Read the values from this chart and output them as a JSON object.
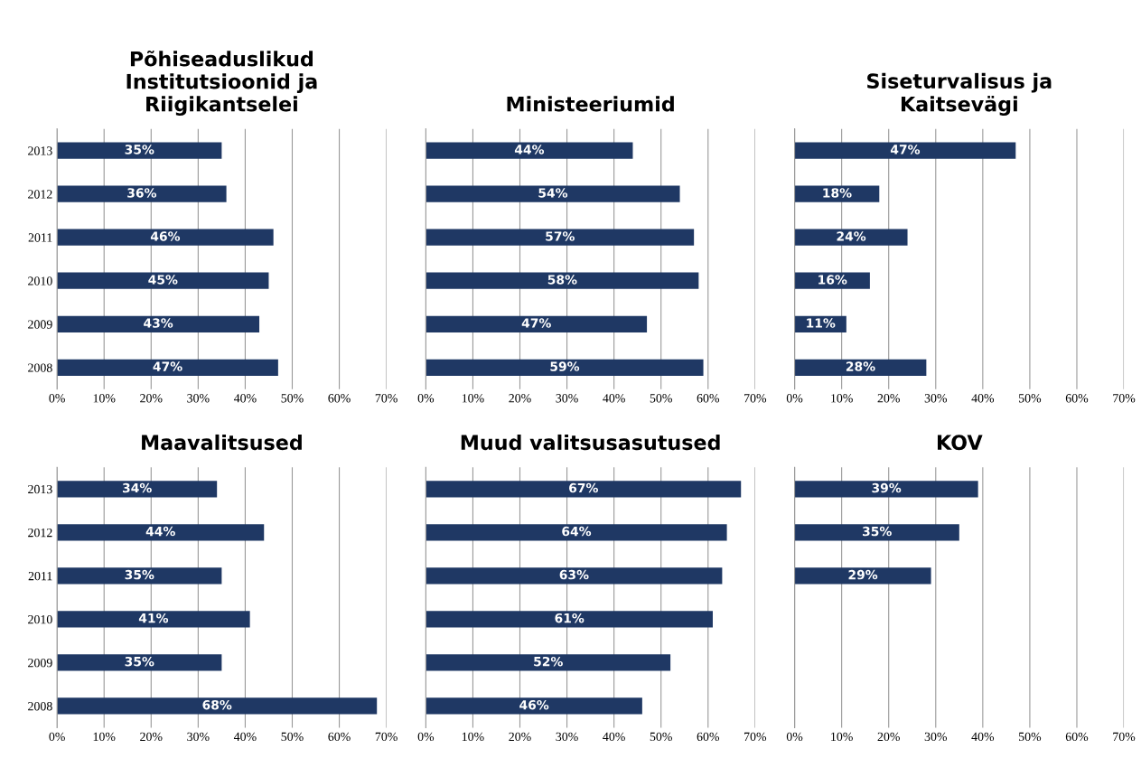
{
  "chart_data": [
    {
      "type": "bar",
      "orientation": "horizontal",
      "title": "Põhiseaduslikud\nInstitutsioonid ja\nRiigikantselei",
      "categories": [
        "2013",
        "2012",
        "2011",
        "2010",
        "2009",
        "2008"
      ],
      "values": [
        35,
        36,
        46,
        45,
        43,
        47
      ],
      "value_labels": [
        "35%",
        "36%",
        "46%",
        "45%",
        "43%",
        "47%"
      ],
      "color": "#1f3864",
      "xlim": [
        0,
        70
      ],
      "xticks": [
        {
          "value": 0,
          "label": "0%"
        },
        {
          "value": 10,
          "label": "10%"
        },
        {
          "value": 20,
          "label": "20%"
        },
        {
          "value": 30,
          "label": "30%"
        },
        {
          "value": 40,
          "label": "40%"
        },
        {
          "value": 50,
          "label": "50%"
        },
        {
          "value": 60,
          "label": "60%"
        },
        {
          "value": 70,
          "label": "70%"
        }
      ],
      "grid": "x"
    },
    {
      "type": "bar",
      "orientation": "horizontal",
      "title": "Ministeeriumid",
      "categories": [
        "2013",
        "2012",
        "2011",
        "2010",
        "2009",
        "2008"
      ],
      "values": [
        44,
        54,
        57,
        58,
        47,
        59
      ],
      "value_labels": [
        "44%",
        "54%",
        "57%",
        "58%",
        "47%",
        "59%"
      ],
      "color": "#1f3864",
      "xlim": [
        0,
        70
      ],
      "xticks": [
        {
          "value": 0,
          "label": "0%"
        },
        {
          "value": 10,
          "label": "10%"
        },
        {
          "value": 20,
          "label": "20%"
        },
        {
          "value": 30,
          "label": "30%"
        },
        {
          "value": 40,
          "label": "40%"
        },
        {
          "value": 50,
          "label": "50%"
        },
        {
          "value": 60,
          "label": "60%"
        },
        {
          "value": 70,
          "label": "70%"
        }
      ],
      "grid": "x",
      "tick_labels": "x"
    },
    {
      "type": "bar",
      "orientation": "horizontal",
      "title": "Siseturvalisus ja\nKaitsevägi",
      "categories": [
        "2013",
        "2012",
        "2011",
        "2010",
        "2009",
        "2008"
      ],
      "values": [
        47,
        18,
        24,
        16,
        11,
        28
      ],
      "value_labels": [
        "47%",
        "18%",
        "24%",
        "16%",
        "11%",
        "28%"
      ],
      "color": "#1f3864",
      "xlim": [
        0,
        70
      ],
      "xticks": [
        {
          "value": 0,
          "label": "0%"
        },
        {
          "value": 10,
          "label": "10%"
        },
        {
          "value": 20,
          "label": "20%"
        },
        {
          "value": 30,
          "label": "30%"
        },
        {
          "value": 40,
          "label": "40%"
        },
        {
          "value": 50,
          "label": "50%"
        },
        {
          "value": 60,
          "label": "60%"
        },
        {
          "value": 70,
          "label": "70%"
        }
      ],
      "grid": "x",
      "tick_labels": "x"
    },
    {
      "type": "bar",
      "orientation": "horizontal",
      "title": "Maavalitsused",
      "categories": [
        "2013",
        "2012",
        "2011",
        "2010",
        "2009",
        "2008"
      ],
      "values": [
        34,
        44,
        35,
        41,
        35,
        68
      ],
      "value_labels": [
        "34%",
        "44%",
        "35%",
        "41%",
        "35%",
        "68%"
      ],
      "color": "#1f3864",
      "xlim": [
        0,
        70
      ],
      "xticks": [
        {
          "value": 0,
          "label": "0%"
        },
        {
          "value": 10,
          "label": "10%"
        },
        {
          "value": 20,
          "label": "20%"
        },
        {
          "value": 30,
          "label": "30%"
        },
        {
          "value": 40,
          "label": "40%"
        },
        {
          "value": 50,
          "label": "50%"
        },
        {
          "value": 60,
          "label": "60%"
        },
        {
          "value": 70,
          "label": "70%"
        }
      ],
      "grid": "x"
    },
    {
      "type": "bar",
      "orientation": "horizontal",
      "title": "Muud valitsusasutused",
      "categories": [
        "2013",
        "2012",
        "2011",
        "2010",
        "2009",
        "2008"
      ],
      "values": [
        67,
        64,
        63,
        61,
        52,
        46
      ],
      "value_labels": [
        "67%",
        "64%",
        "63%",
        "61%",
        "52%",
        "46%"
      ],
      "color": "#1f3864",
      "xlim": [
        0,
        70
      ],
      "xticks": [
        {
          "value": 0,
          "label": "0%"
        },
        {
          "value": 10,
          "label": "10%"
        },
        {
          "value": 20,
          "label": "20%"
        },
        {
          "value": 30,
          "label": "30%"
        },
        {
          "value": 40,
          "label": "40%"
        },
        {
          "value": 50,
          "label": "50%"
        },
        {
          "value": 60,
          "label": "60%"
        },
        {
          "value": 70,
          "label": "70%"
        }
      ],
      "grid": "x",
      "tick_labels": "x"
    },
    {
      "type": "bar",
      "orientation": "horizontal",
      "title": "KOV",
      "categories": [
        "2013",
        "2012",
        "2011",
        "2010",
        "2009",
        "2008"
      ],
      "values": [
        39,
        35,
        29,
        null,
        null,
        null
      ],
      "value_labels": [
        "39%",
        "35%",
        "29%",
        null,
        null,
        null
      ],
      "color": "#1f3864",
      "xlim": [
        0,
        70
      ],
      "xticks": [
        {
          "value": 0,
          "label": "0%"
        },
        {
          "value": 10,
          "label": "10%"
        },
        {
          "value": 20,
          "label": "20%"
        },
        {
          "value": 30,
          "label": "30%"
        },
        {
          "value": 40,
          "label": "40%"
        },
        {
          "value": 50,
          "label": "50%"
        },
        {
          "value": 60,
          "label": "60%"
        },
        {
          "value": 70,
          "label": "70%"
        }
      ],
      "grid": "x",
      "tick_labels": "x"
    }
  ]
}
